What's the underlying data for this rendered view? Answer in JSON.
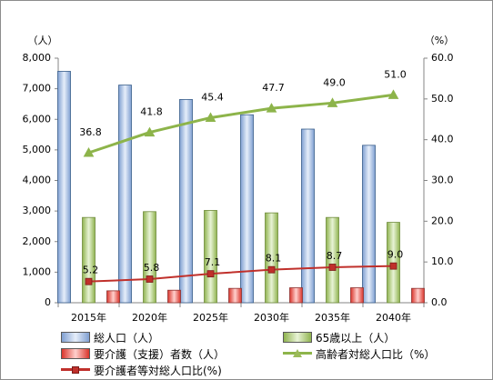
{
  "chart_data": {
    "type": "bar",
    "categories": [
      "2015年",
      "2020年",
      "2025年",
      "2030年",
      "2035年",
      "2040年"
    ],
    "left_axis": {
      "unit": "（人）",
      "ylim": [
        0,
        8000
      ],
      "ticks": [
        "0",
        "1,000",
        "2,000",
        "3,000",
        "4,000",
        "5,000",
        "6,000",
        "7,000",
        "8,000"
      ]
    },
    "right_axis": {
      "unit": "（%）",
      "ylim": [
        0,
        60
      ],
      "ticks": [
        "0.0",
        "10.0",
        "20.0",
        "30.0",
        "40.0",
        "50.0",
        "60.0"
      ]
    },
    "series": [
      {
        "name": "総人口（人）",
        "type": "bar",
        "axis": "left",
        "color": "#4f81bd",
        "values": [
          7570,
          7120,
          6650,
          6150,
          5680,
          5150
        ]
      },
      {
        "name": "65歳以上（人）",
        "type": "bar",
        "axis": "left",
        "color": "#9bbb59",
        "values": [
          2790,
          2980,
          3020,
          2940,
          2790,
          2630
        ]
      },
      {
        "name": "要介護（支援）者数（人）",
        "type": "bar",
        "axis": "left",
        "color": "#c0504d",
        "values": [
          390,
          410,
          470,
          490,
          490,
          470
        ]
      },
      {
        "name": "高齢者対総人口比（%）",
        "type": "line",
        "axis": "right",
        "color": "#9bbb59",
        "marker": "triangle",
        "values": [
          36.8,
          41.8,
          45.4,
          47.7,
          49.0,
          51.0
        ],
        "labels": [
          "36.8",
          "41.8",
          "45.4",
          "47.7",
          "49.0",
          "51.0"
        ]
      },
      {
        "name": "要介護者等対総人口比(%)",
        "type": "line",
        "axis": "right",
        "color": "#c0504d",
        "marker": "square",
        "values": [
          5.2,
          5.8,
          7.1,
          8.1,
          8.7,
          9.0
        ],
        "labels": [
          "5.2",
          "5.8",
          "7.1",
          "8.1",
          "8.7",
          "9.0"
        ]
      }
    ],
    "grid": false,
    "legend_position": "bottom"
  }
}
